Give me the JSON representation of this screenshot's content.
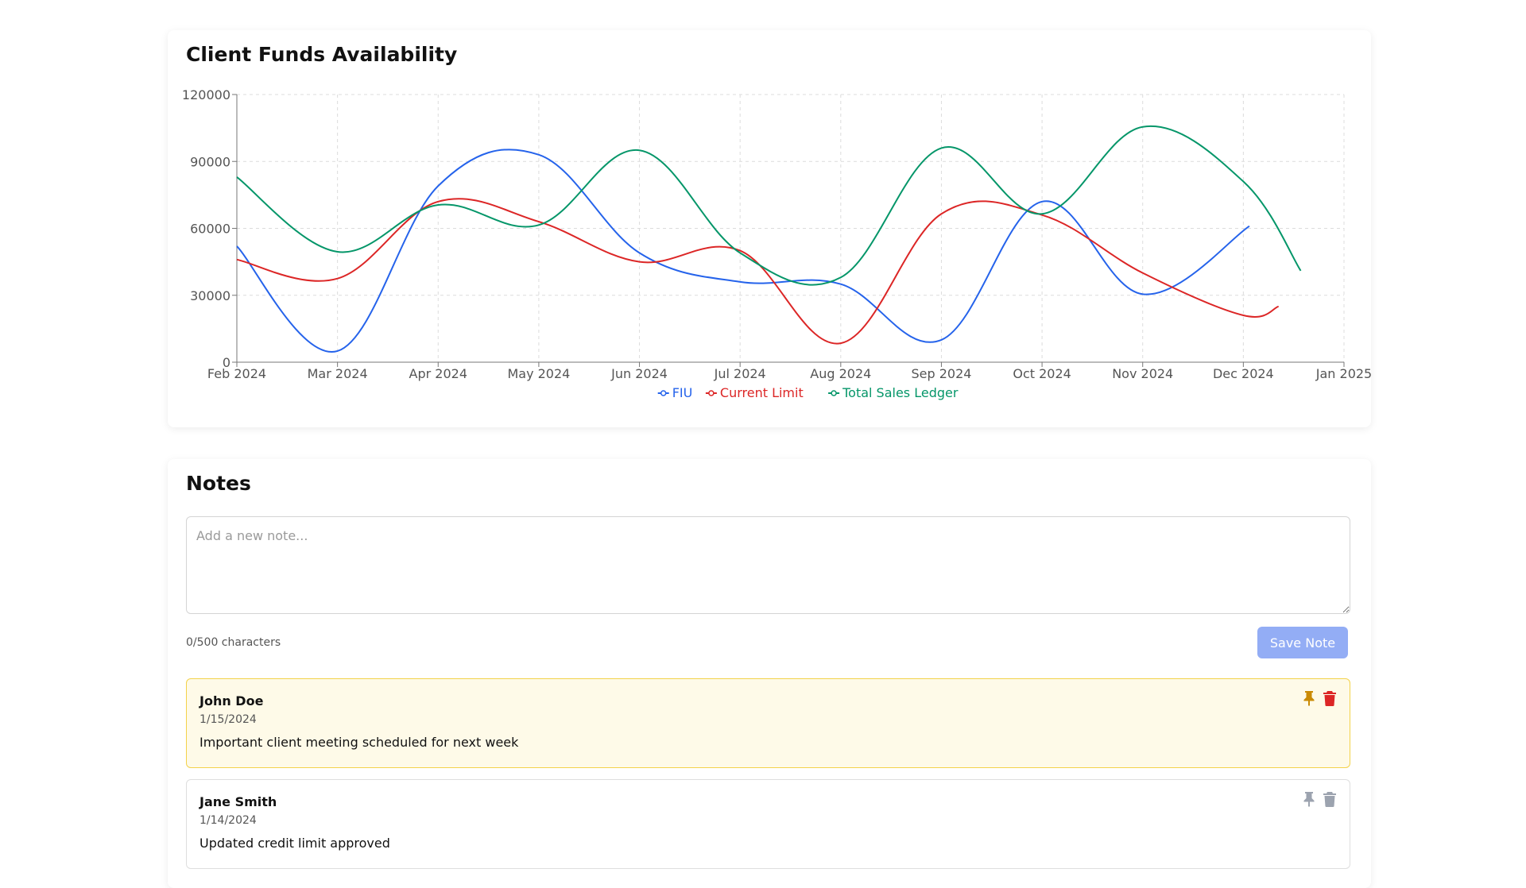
{
  "chart_card": {
    "title": "Client Funds Availability"
  },
  "chart_data": {
    "type": "line",
    "title": "Client Funds Availability",
    "x_ticks": [
      "Feb 2024",
      "Mar 2024",
      "Apr 2024",
      "May 2024",
      "Jun 2024",
      "Jul 2024",
      "Aug 2024",
      "Sep 2024",
      "Oct 2024",
      "Nov 2024",
      "Dec 2024",
      "Jan 2025"
    ],
    "y_ticks": [
      0,
      30000,
      60000,
      90000,
      120000
    ],
    "ylim": [
      0,
      120000
    ],
    "grid": true,
    "legend_position": "bottom",
    "series": [
      {
        "name": "FIU",
        "color": "#2563eb",
        "points": [
          [
            "Feb 2024",
            52000
          ],
          [
            "Mar 2024",
            5000
          ],
          [
            "Apr 2024",
            79000
          ],
          [
            "May 2024",
            93000
          ],
          [
            "Jun 2024",
            49000
          ],
          [
            "Jul 2024",
            36000
          ],
          [
            "Aug 2024",
            35000
          ],
          [
            "Sep 2024",
            10000
          ],
          [
            "Oct 2024",
            72000
          ],
          [
            "Nov 2024",
            30500
          ],
          [
            "Dec 2024 (+0.06)",
            61000
          ]
        ]
      },
      {
        "name": "Current Limit",
        "color": "#dc2626",
        "points": [
          [
            "Feb 2024",
            46000
          ],
          [
            "Mar 2024",
            37500
          ],
          [
            "Apr 2024",
            72000
          ],
          [
            "May 2024",
            63000
          ],
          [
            "Jun 2024",
            45000
          ],
          [
            "Jul 2024",
            50000
          ],
          [
            "Aug 2024",
            8500
          ],
          [
            "Sep 2024",
            66500
          ],
          [
            "Oct 2024",
            66000
          ],
          [
            "Nov 2024",
            40000
          ],
          [
            "Dec 2024",
            21000
          ],
          [
            "Dec 2024 (+0.35)",
            25000
          ]
        ]
      },
      {
        "name": "Total Sales Ledger",
        "color": "#059669",
        "points": [
          [
            "Feb 2024",
            83000
          ],
          [
            "Mar 2024",
            49500
          ],
          [
            "Apr 2024",
            70500
          ],
          [
            "May 2024",
            61500
          ],
          [
            "Jun 2024",
            95000
          ],
          [
            "Jul 2024",
            49000
          ],
          [
            "Aug 2024",
            38000
          ],
          [
            "Sep 2024",
            96000
          ],
          [
            "Oct 2024",
            66500
          ],
          [
            "Nov 2024",
            105500
          ],
          [
            "Dec 2024",
            81000
          ],
          [
            "Dec 2024 (+0.57)",
            41000
          ]
        ]
      }
    ],
    "series_xindex": [
      [
        0,
        1,
        2,
        3,
        4,
        5,
        6,
        7,
        8,
        9,
        10.06
      ],
      [
        0,
        1,
        2,
        3,
        4,
        5,
        6,
        7,
        8,
        9,
        10,
        10.35
      ],
      [
        0,
        1,
        2,
        3,
        4,
        5,
        6,
        7,
        8,
        9,
        10,
        10.57
      ]
    ]
  },
  "notes_card": {
    "title": "Notes",
    "input": {
      "placeholder": "Add a new note...",
      "value": ""
    },
    "char_count": "0/500 characters",
    "save_label": "Save Note",
    "notes": [
      {
        "author": "John Doe",
        "date": "1/15/2024",
        "text": "Important client meeting scheduled for next week",
        "pinned": true
      },
      {
        "author": "Jane Smith",
        "date": "1/14/2024",
        "text": "Updated credit limit approved",
        "pinned": false
      }
    ]
  },
  "colors": {
    "pin_active": "#ca8a04",
    "delete_active": "#dc2626",
    "icon_inactive": "#9ca3af",
    "button_bg": "#93adf5"
  }
}
